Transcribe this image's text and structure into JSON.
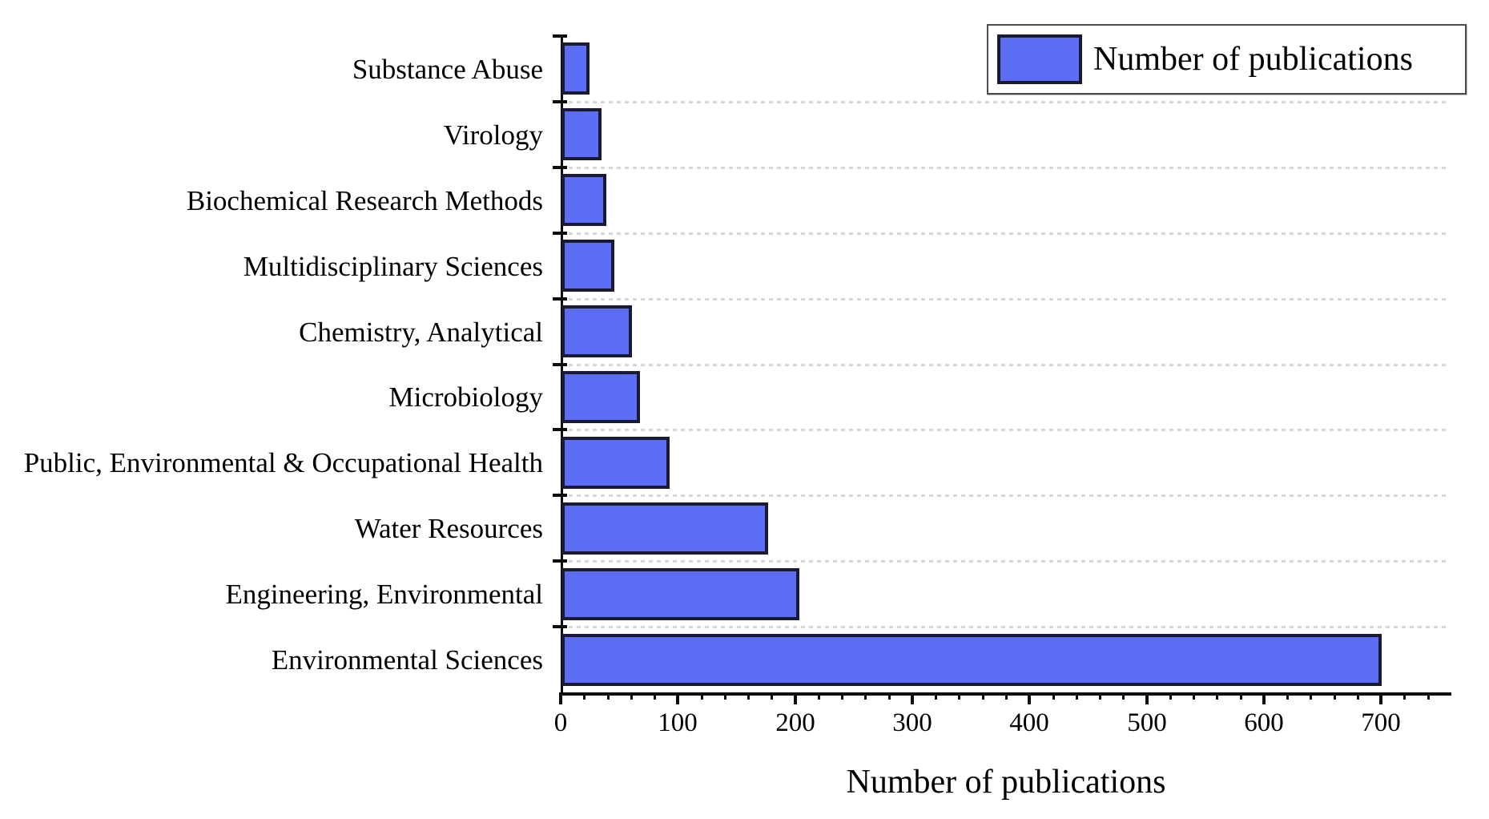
{
  "chart_data": {
    "type": "bar",
    "orientation": "horizontal",
    "title": "",
    "xlabel": "Number of publications",
    "ylabel": "",
    "legend": {
      "label": "Number of publications",
      "position": "top-right"
    },
    "category_order": "top-to-bottom",
    "categories": [
      "Substance Abuse",
      "Virology",
      "Biochemical Research Methods",
      "Multidisciplinary Sciences",
      "Chemistry, Analytical",
      "Microbiology",
      "Public, Environmental & Occupational Health",
      "Water Resources",
      "Engineering, Environmental",
      "Environmental Sciences"
    ],
    "values": [
      24,
      34,
      38,
      45,
      60,
      67,
      92,
      176,
      203,
      700
    ],
    "xlim": [
      0,
      760
    ],
    "x_major_ticks": [
      0,
      100,
      200,
      300,
      400,
      500,
      600,
      700
    ],
    "x_minor_tick_step": 20,
    "grid": "dotted horizontal separators between categories",
    "colors": {
      "bar_fill": "#5c6ef6",
      "bar_border": "#1a1a33",
      "grid": "#d6d6d6",
      "axis": "#0d0d0d",
      "text": "#000000",
      "legend_border": "#4b4b4b",
      "legend_bg": "#ffffff"
    }
  }
}
